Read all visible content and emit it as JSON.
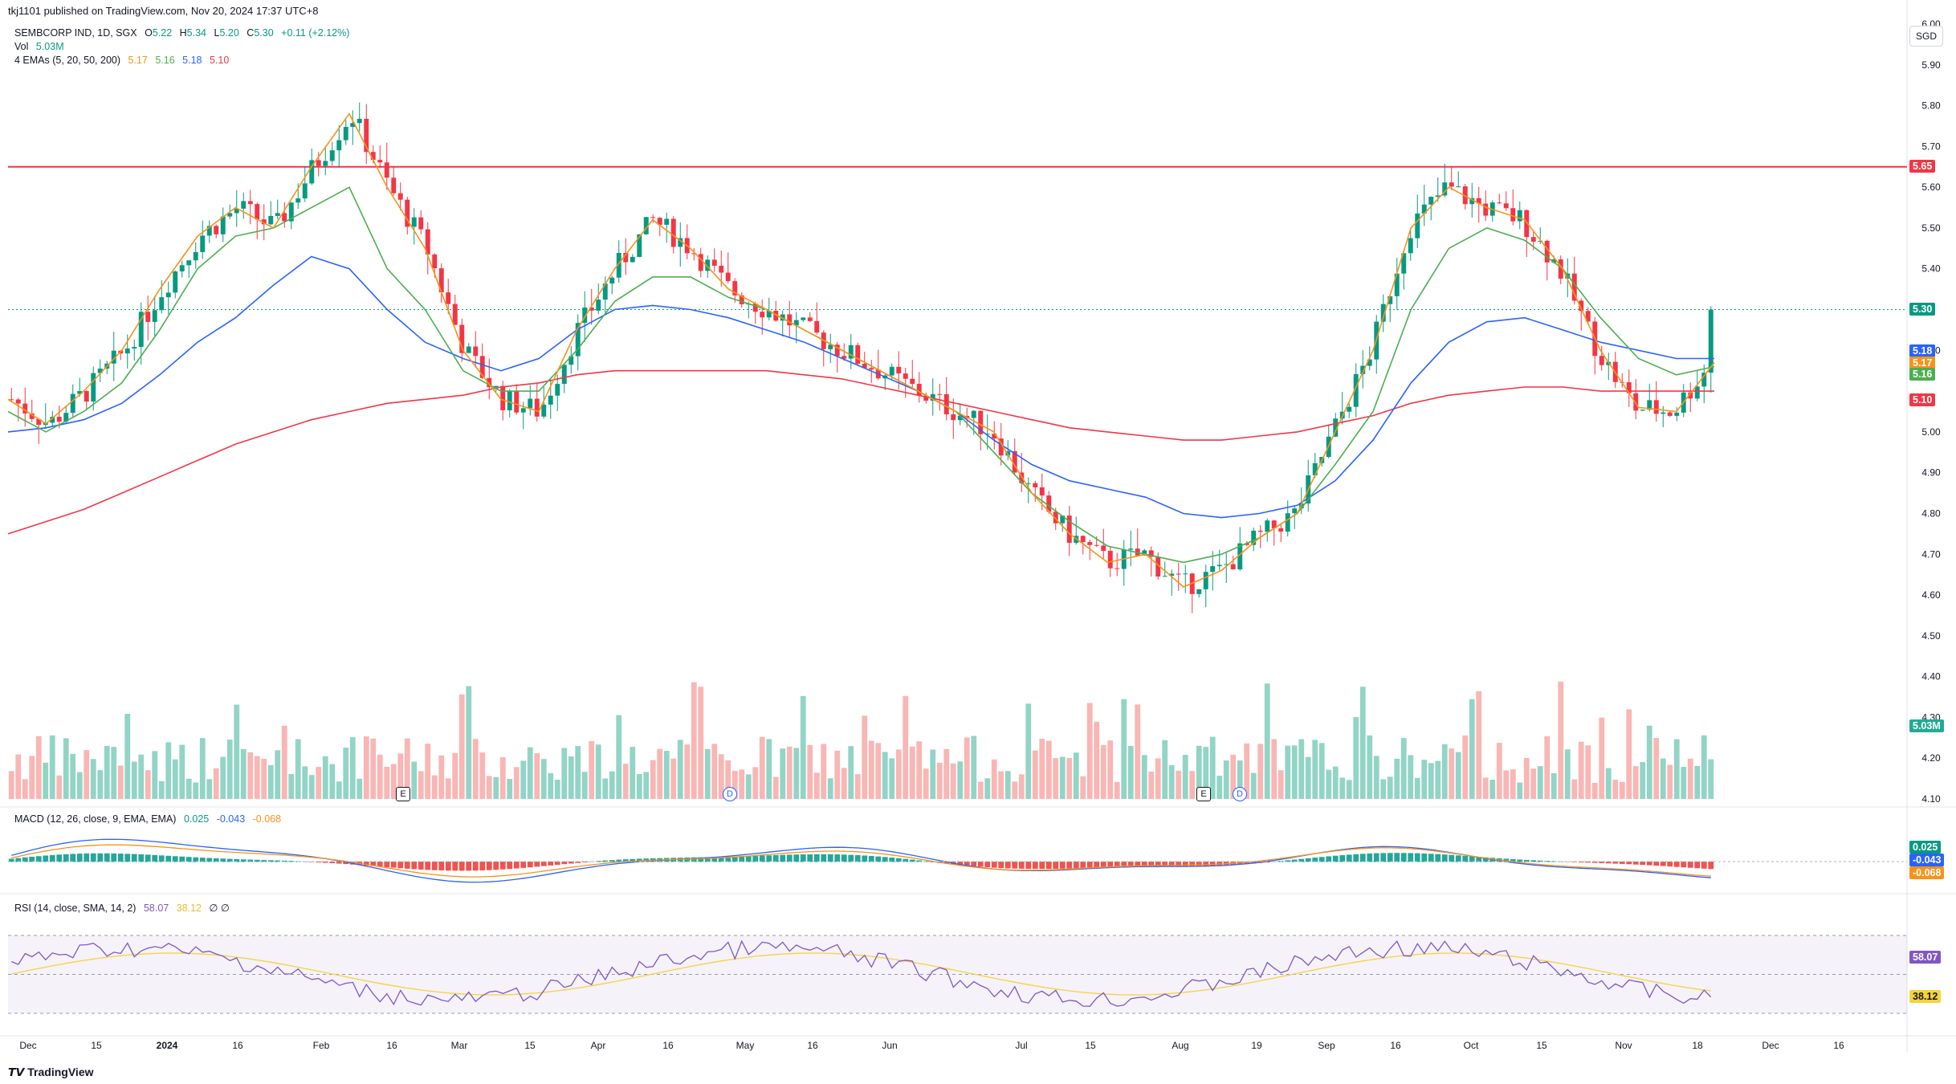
{
  "header": {
    "caption": "tkj1101 published on TradingView.com, Nov 20, 2024 17:37 UTC+8",
    "symbol": "SEMBCORP IND, 1D, SGX",
    "o_label": "O",
    "o": "5.22",
    "h_label": "H",
    "h": "5.34",
    "l_label": "L",
    "l": "5.20",
    "c_label": "C",
    "c": "5.30",
    "change": "+0.11 (+2.12%)",
    "vol_label": "Vol",
    "vol": "5.03M",
    "ema_label": "4 EMAs (5, 20, 50, 200)",
    "ema5": "5.17",
    "ema20": "5.16",
    "ema50": "5.18",
    "ema200": "5.10",
    "currency": "SGD"
  },
  "macd_legend": {
    "label": "MACD (12, 26, close, 9, EMA, EMA)",
    "macd": "0.025",
    "signal": "-0.043",
    "hist": "-0.068"
  },
  "rsi_legend": {
    "label": "RSI (14, close, SMA, 14, 2)",
    "rsi": "58.07",
    "ma": "38.12",
    "extra": "∅ ∅"
  },
  "branding": "TradingView",
  "colors": {
    "up": "#089981",
    "down": "#f23645",
    "ema5": "#f7931a",
    "ema20": "#4caf50",
    "ema50": "#2962ff",
    "ema200": "#f23645",
    "resistance": "#f23645",
    "rsi": "#7e57c2",
    "rsi_ma": "#f5d33a"
  },
  "price_badges": [
    {
      "value": "5.65",
      "color": "#f23645"
    },
    {
      "value": "5.30",
      "color": "#089981"
    },
    {
      "value": "5.18",
      "color": "#2962ff"
    },
    {
      "value": "5.17",
      "color": "#f7931a"
    },
    {
      "value": "5.16",
      "color": "#4caf50"
    },
    {
      "value": "5.10",
      "color": "#f23645"
    },
    {
      "value": "5.03M",
      "color": "#22ab94"
    }
  ],
  "macd_badges": [
    {
      "value": "0.025",
      "color": "#089981"
    },
    {
      "value": "-0.043",
      "color": "#2962ff"
    },
    {
      "value": "-0.068",
      "color": "#f7931a"
    }
  ],
  "rsi_badges": [
    {
      "value": "58.07",
      "color": "#7e57c2"
    },
    {
      "value": "38.12",
      "color": "#f5d33a"
    }
  ],
  "events": {
    "earnings": "E",
    "dividend": "D"
  },
  "chart_data": {
    "type": "candlestick",
    "title": "SEMBCORP IND, 1D, SGX",
    "ylim": [
      4.1,
      6.0
    ],
    "resistance": 5.65,
    "y_ticks": [
      "6.00",
      "5.90",
      "5.80",
      "5.70",
      "5.60",
      "5.50",
      "5.40",
      "5.20",
      "5.00",
      "4.90",
      "4.80",
      "4.70",
      "4.60",
      "4.50",
      "4.40",
      "4.30",
      "4.20",
      "4.10"
    ],
    "x_ticks": [
      "Dec",
      "15",
      "2024",
      "16",
      "Feb",
      "16",
      "Mar",
      "15",
      "Apr",
      "16",
      "May",
      "16",
      "Jun",
      "Jul",
      "15",
      "Aug",
      "19",
      "Sep",
      "16",
      "Oct",
      "15",
      "Nov",
      "18",
      "Dec",
      "16"
    ],
    "ema_anchor_points": {
      "ema5": [
        5.08,
        5.02,
        5.1,
        5.2,
        5.35,
        5.48,
        5.55,
        5.5,
        5.65,
        5.78,
        5.6,
        5.45,
        5.2,
        5.08,
        5.05,
        5.25,
        5.4,
        5.52,
        5.45,
        5.35,
        5.3,
        5.25,
        5.2,
        5.15,
        5.1,
        5.05,
        5.0,
        4.85,
        4.75,
        4.68,
        4.7,
        4.62,
        4.66,
        4.74,
        4.8,
        5.0,
        5.2,
        5.5,
        5.6,
        5.55,
        5.52,
        5.4,
        5.2,
        5.06,
        5.05,
        5.17
      ],
      "ema20": [
        5.05,
        5.0,
        5.05,
        5.12,
        5.25,
        5.4,
        5.48,
        5.5,
        5.55,
        5.6,
        5.4,
        5.3,
        5.15,
        5.1,
        5.1,
        5.2,
        5.32,
        5.38,
        5.38,
        5.33,
        5.3,
        5.25,
        5.2,
        5.15,
        5.1,
        5.05,
        4.95,
        4.85,
        4.78,
        4.72,
        4.7,
        4.68,
        4.7,
        4.74,
        4.8,
        4.92,
        5.05,
        5.3,
        5.45,
        5.5,
        5.47,
        5.4,
        5.28,
        5.18,
        5.14,
        5.16
      ],
      "ema50": [
        5.0,
        5.01,
        5.03,
        5.07,
        5.14,
        5.22,
        5.28,
        5.36,
        5.43,
        5.4,
        5.3,
        5.22,
        5.18,
        5.15,
        5.18,
        5.25,
        5.3,
        5.31,
        5.3,
        5.28,
        5.25,
        5.22,
        5.18,
        5.14,
        5.1,
        5.05,
        4.98,
        4.92,
        4.88,
        4.86,
        4.84,
        4.8,
        4.79,
        4.8,
        4.82,
        4.88,
        4.98,
        5.12,
        5.22,
        5.27,
        5.28,
        5.25,
        5.22,
        5.2,
        5.18,
        5.18
      ],
      "ema200": [
        4.75,
        4.78,
        4.81,
        4.85,
        4.89,
        4.93,
        4.97,
        5.0,
        5.03,
        5.05,
        5.07,
        5.08,
        5.09,
        5.11,
        5.12,
        5.14,
        5.15,
        5.15,
        5.15,
        5.15,
        5.15,
        5.14,
        5.13,
        5.11,
        5.09,
        5.07,
        5.05,
        5.03,
        5.01,
        5.0,
        4.99,
        4.98,
        4.98,
        4.99,
        5.0,
        5.02,
        5.04,
        5.07,
        5.09,
        5.1,
        5.11,
        5.11,
        5.1,
        5.1,
        5.1,
        5.1
      ]
    },
    "last_close": 5.3,
    "last_volume": "5.03M"
  }
}
